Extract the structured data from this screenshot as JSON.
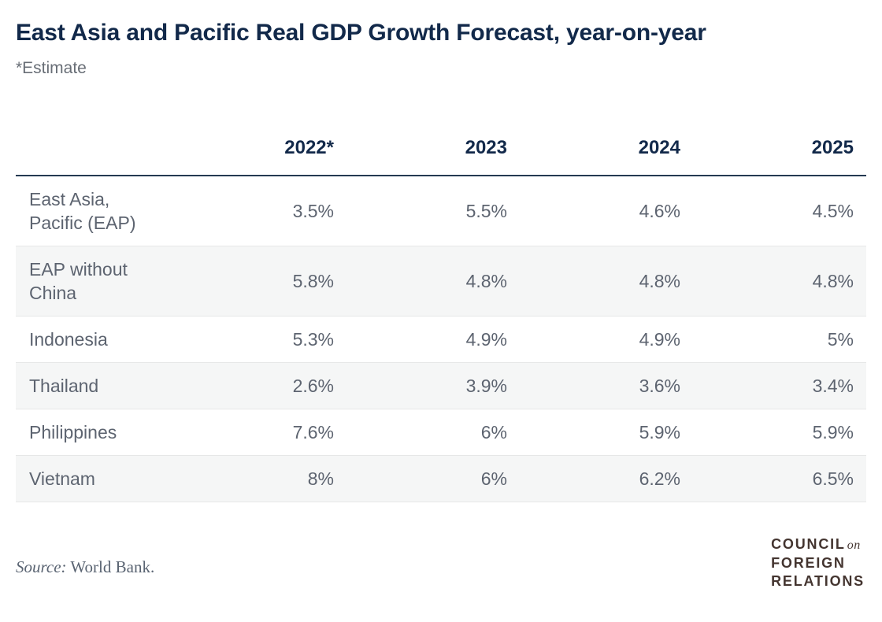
{
  "title": "East Asia and Pacific Real GDP Growth Forecast, year-on-year",
  "note": "*Estimate",
  "table": {
    "columns": [
      "2022*",
      "2023",
      "2024",
      "2025"
    ],
    "rows": [
      {
        "label": "East Asia, Pacific (EAP)",
        "values": [
          "3.5%",
          "5.5%",
          "4.6%",
          "4.5%"
        ]
      },
      {
        "label": "EAP without China",
        "values": [
          "5.8%",
          "4.8%",
          "4.8%",
          "4.8%"
        ]
      },
      {
        "label": "Indonesia",
        "values": [
          "5.3%",
          "4.9%",
          "4.9%",
          "5%"
        ]
      },
      {
        "label": "Thailand",
        "values": [
          "2.6%",
          "3.9%",
          "3.6%",
          "3.4%"
        ]
      },
      {
        "label": "Philippines",
        "values": [
          "7.6%",
          "6%",
          "5.9%",
          "5.9%"
        ]
      },
      {
        "label": "Vietnam",
        "values": [
          "8%",
          "6%",
          "6.2%",
          "6.5%"
        ]
      }
    ]
  },
  "source": {
    "prefix": "Source:",
    "text": "World Bank."
  },
  "logo": {
    "word1": "COUNCIL",
    "connector": "on",
    "word2": "FOREIGN",
    "word3": "RELATIONS"
  },
  "colors": {
    "navy": "#12294a",
    "header_rule": "#243a52",
    "body_text": "#5d6470",
    "stripe": "#f5f6f6",
    "note_gray": "#686e76",
    "logo_brown": "#443530"
  },
  "chart_data": {
    "type": "table",
    "title": "East Asia and Pacific Real GDP Growth Forecast, year-on-year",
    "note": "*Estimate",
    "columns": [
      "2022*",
      "2023",
      "2024",
      "2025"
    ],
    "row_labels": [
      "East Asia, Pacific (EAP)",
      "EAP without China",
      "Indonesia",
      "Thailand",
      "Philippines",
      "Vietnam"
    ],
    "values_percent": [
      [
        3.5,
        5.5,
        4.6,
        4.5
      ],
      [
        5.8,
        4.8,
        4.8,
        4.8
      ],
      [
        5.3,
        4.9,
        4.9,
        5.0
      ],
      [
        2.6,
        3.9,
        3.6,
        3.4
      ],
      [
        7.6,
        6.0,
        5.9,
        5.9
      ],
      [
        8.0,
        6.0,
        6.2,
        6.5
      ]
    ],
    "source": "Source: World Bank.",
    "layout_hints": {
      "striped_rows": "even",
      "value_alignment": "right",
      "grid": "header-rule-only"
    }
  }
}
